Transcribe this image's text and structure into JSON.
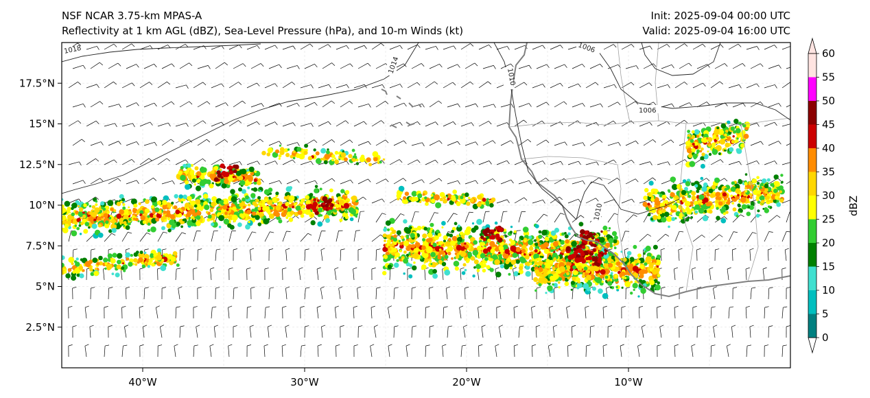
{
  "header": {
    "left_line1": "NSF NCAR 3.75-km MPAS-A",
    "left_line2": "Reflectivity at 1 km AGL (dBZ), Sea-Level Pressure (hPa), and 10-m Winds (kt)",
    "right_line1": "Init: 2025-09-04 00:00 UTC",
    "right_line2": "Valid: 2025-09-04 16:00 UTC"
  },
  "map": {
    "lon_range": [
      -45,
      0
    ],
    "lat_range": [
      0,
      20
    ],
    "lon_ticks": [
      {
        "value": -40,
        "label": "40°W"
      },
      {
        "value": -30,
        "label": "30°W"
      },
      {
        "value": -20,
        "label": "20°W"
      },
      {
        "value": -10,
        "label": "10°W"
      }
    ],
    "lat_ticks": [
      {
        "value": 2.5,
        "label": "2.5°N"
      },
      {
        "value": 5,
        "label": "5°N"
      },
      {
        "value": 7.5,
        "label": "7.5°N"
      },
      {
        "value": 10,
        "label": "10°N"
      },
      {
        "value": 12.5,
        "label": "12.5°N"
      },
      {
        "value": 15,
        "label": "15°N"
      },
      {
        "value": 17.5,
        "label": "17.5°N"
      }
    ],
    "isobar_labels": [
      "1018",
      "1014",
      "1010",
      "1006",
      "1006",
      "1010"
    ]
  },
  "colorbar": {
    "label": "dBZ",
    "ticks": [
      "0",
      "5",
      "10",
      "15",
      "20",
      "25",
      "30",
      "35",
      "40",
      "45",
      "50",
      "55",
      "60"
    ],
    "colors": [
      "#008080",
      "#00bfbf",
      "#40e0d0",
      "#008000",
      "#32cd32",
      "#ffff00",
      "#ffd700",
      "#ff8c00",
      "#cc0000",
      "#8b0000",
      "#ff00ff",
      "#ffe4e1"
    ]
  }
}
